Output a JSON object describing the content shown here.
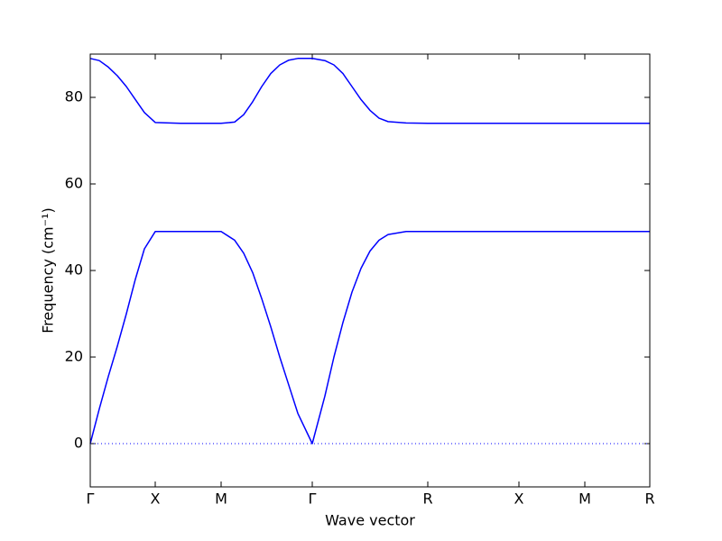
{
  "chart_data": {
    "type": "line",
    "xlabel": "Wave vector",
    "ylabel": "Frequency (cm⁻¹)",
    "x": [
      0,
      0.1,
      0.2,
      0.3,
      0.4,
      0.5,
      0.6,
      0.72,
      1.0,
      1.45,
      1.6,
      1.7,
      1.8,
      1.9,
      2.0,
      2.1,
      2.2,
      2.3,
      2.46,
      2.6,
      2.7,
      2.8,
      2.9,
      3.0,
      3.1,
      3.2,
      3.3,
      3.5,
      3.74,
      4.75,
      5.48,
      6.2
    ],
    "series": [
      {
        "color": "#0000ff",
        "values": [
          0,
          8,
          15.5,
          22.5,
          30,
          38,
          45,
          49,
          49,
          49,
          47,
          44,
          39.5,
          33.5,
          27,
          20,
          13.5,
          7,
          0,
          11,
          20,
          28,
          35,
          40.5,
          44.5,
          47,
          48.3,
          49,
          49,
          49,
          49,
          49
        ]
      },
      {
        "color": "#0000ff",
        "values": [
          89,
          88.5,
          87,
          85,
          82.5,
          79.5,
          76.5,
          74.2,
          74,
          74,
          74.3,
          76,
          79,
          82.5,
          85.5,
          87.5,
          88.6,
          89,
          89,
          88.5,
          87.5,
          85.5,
          82.5,
          79.5,
          77,
          75.2,
          74.4,
          74.1,
          74,
          74,
          74,
          74
        ]
      }
    ],
    "hlines": [
      0
    ],
    "xlim": [
      0,
      6.2
    ],
    "xticks": [
      {
        "value": 0,
        "label": "Γ"
      },
      {
        "value": 0.72,
        "label": "X"
      },
      {
        "value": 1.45,
        "label": "M"
      },
      {
        "value": 2.46,
        "label": "Γ"
      },
      {
        "value": 3.74,
        "label": "R"
      },
      {
        "value": 4.75,
        "label": "X"
      },
      {
        "value": 5.48,
        "label": "M"
      },
      {
        "value": 6.2,
        "label": "R"
      }
    ],
    "ylim": [
      -10,
      90
    ],
    "yticks": [
      0,
      20,
      40,
      60,
      80
    ]
  }
}
